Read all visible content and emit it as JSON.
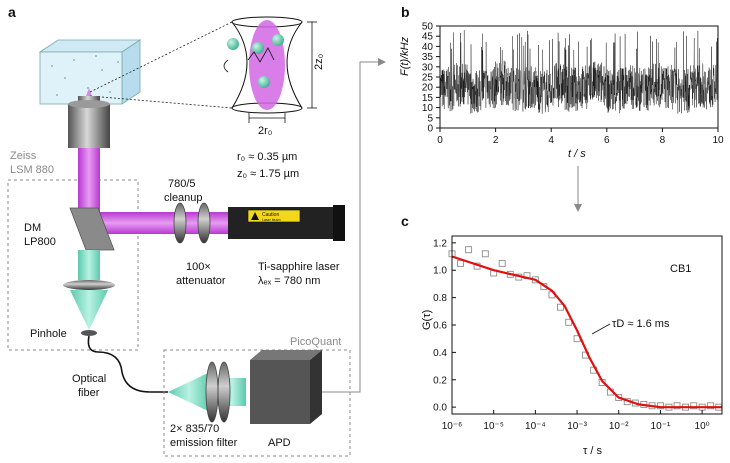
{
  "panels": {
    "a": {
      "label": "a",
      "zeiss_line1": "Zeiss",
      "zeiss_line2": "LSM 880",
      "r0_text": "r₀ ≈ 0.35 µm",
      "z0_text": "z₀ ≈ 1.75 µm",
      "r0_dim": "2r₀",
      "z0_dim": "2z₀",
      "cleanup_line1": "780/5",
      "cleanup_line2": "cleanup",
      "dm_line1": "DM",
      "dm_line2": "LP800",
      "att_line1": "100×",
      "att_line2": "attenuator",
      "laser_line1": "Ti-sapphire laser",
      "laser_line2": "λₑₓ = 780 nm",
      "caution_line1": "Caution",
      "caution_line2": "Laser beam",
      "pinhole": "Pinhole",
      "fiber_line1": "Optical",
      "fiber_line2": "fiber",
      "picoquant": "PicoQuant",
      "filter_line1": "2× 835/70",
      "filter_line2": "emission filter",
      "apd": "APD"
    },
    "b": {
      "label": "b",
      "ylabel": "F(t)/kHz",
      "xlabel": "t / s"
    },
    "c": {
      "label": "c",
      "ylabel": "G(τ)",
      "xlabel": "τ / s",
      "legend": "CB1",
      "annotation": "τD ≈ 1.6 ms"
    }
  },
  "colors": {
    "excitation": "#c84bd6",
    "emission": "#7fe0c8",
    "fit": "#e01010",
    "trace": "#000000",
    "markers": "#8c8c8c"
  },
  "chart_data": [
    {
      "type": "line",
      "panel": "b",
      "xlabel": "t / s",
      "ylabel": "F(t)/kHz",
      "xlim": [
        0,
        10
      ],
      "ylim": [
        0,
        50
      ],
      "xticks": [
        0,
        2,
        4,
        6,
        8,
        10
      ],
      "yticks": [
        0,
        5,
        10,
        15,
        20,
        25,
        30,
        35,
        40,
        45,
        50
      ],
      "series": [
        {
          "x": [
            0,
            0.5,
            1,
            1.5,
            2,
            2.5,
            3,
            3.5,
            4,
            4.5,
            5,
            5.5,
            6,
            6.5,
            7,
            7.5,
            8,
            8.5,
            9,
            9.5,
            10
          ],
          "values": [
            19,
            21,
            18,
            20,
            22,
            19,
            20,
            18,
            21,
            19,
            20,
            22,
            18,
            20,
            19,
            21,
            20,
            18,
            21,
            20,
            19
          ]
        }
      ],
      "fluctuation_range": [
        5,
        48
      ]
    },
    {
      "type": "scatter",
      "panel": "c",
      "xlabel": "τ / s",
      "ylabel": "G(τ)",
      "xscale": "log",
      "xlim": [
        1e-06,
        3
      ],
      "ylim": [
        -0.05,
        1.25
      ],
      "xticks": [
        "10⁻⁶",
        "10⁻⁵",
        "10⁻⁴",
        "10⁻³",
        "10⁻²",
        "10⁻¹",
        "10⁰"
      ],
      "xtick_values": [
        1e-06,
        1e-05,
        0.0001,
        0.001,
        0.01,
        0.1,
        1
      ],
      "yticks": [
        0.0,
        0.2,
        0.4,
        0.6,
        0.8,
        1.0,
        1.2
      ],
      "legend": "CB1",
      "series": [
        {
          "name": "data",
          "x": [
            1e-06,
            1.6e-06,
            2.5e-06,
            4e-06,
            6.3e-06,
            1e-05,
            1.6e-05,
            2.5e-05,
            4e-05,
            6.3e-05,
            0.0001,
            0.00016,
            0.00025,
            0.0004,
            0.00063,
            0.001,
            0.0016,
            0.0025,
            0.004,
            0.0063,
            0.01,
            0.016,
            0.025,
            0.04,
            0.063,
            0.1,
            0.16,
            0.25,
            0.4,
            0.63,
            1,
            1.6,
            2.5
          ],
          "values": [
            1.12,
            1.05,
            1.15,
            1.03,
            1.12,
            0.98,
            1.05,
            0.97,
            0.95,
            0.96,
            0.93,
            0.88,
            0.82,
            0.73,
            0.62,
            0.5,
            0.38,
            0.27,
            0.18,
            0.11,
            0.07,
            0.04,
            0.03,
            0.02,
            0.01,
            0.01,
            0.0,
            0.01,
            0.0,
            0.01,
            0.0,
            0.01,
            0.0
          ]
        },
        {
          "name": "fit",
          "x": [
            1e-06,
            1e-05,
            0.0001,
            0.00025,
            0.0005,
            0.001,
            0.002,
            0.004,
            0.01,
            0.03,
            0.1,
            1,
            3
          ],
          "values": [
            1.1,
            1.0,
            0.93,
            0.85,
            0.74,
            0.56,
            0.36,
            0.19,
            0.07,
            0.02,
            0.0,
            0.0,
            0.0
          ]
        }
      ]
    }
  ]
}
